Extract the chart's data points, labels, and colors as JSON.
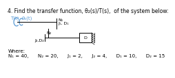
{
  "title_line": "4. Find the transfer function, θ₂(s)/T(s),  of the system below:",
  "Tt_label": "T(t)",
  "theta_label": "θ₂(t)",
  "N1_label": "N₁",
  "N2_label": "N₂",
  "J1D1_label": "J₁, D₁",
  "J2D2_label": "J₂,D₂",
  "D_label": "D",
  "where_line": "Where:",
  "params": "N₁ = 40,      N₂ = 20,      J₁ = 2,      J₂ = 4,      D₁ = 10,      D₂ = 15",
  "bg_color": "#ffffff",
  "text_color": "#000000",
  "blue_color": "#5b9bd5",
  "title_fontsize": 5.5,
  "label_fontsize": 5.0,
  "small_fontsize": 4.5
}
